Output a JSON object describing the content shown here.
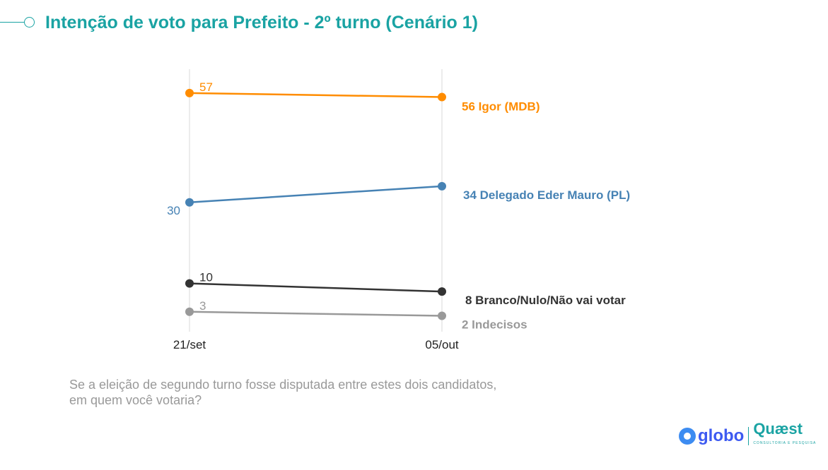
{
  "header": {
    "title": "Intenção de voto para Prefeito - 2º turno (Cenário 1)"
  },
  "question": "Se a eleição de segundo turno fosse disputada entre estes dois candidatos, em quem você votaria?",
  "logos": {
    "globo": "globo",
    "quaest": "Quæst",
    "quaest_sub": "CONSULTORIA E PESQUISA"
  },
  "chart_data": {
    "type": "line",
    "title": "Intenção de voto para Prefeito - 2º turno (Cenário 1)",
    "categories": [
      "21/set",
      "05/out"
    ],
    "ylim": [
      0,
      60
    ],
    "series": [
      {
        "name": "Igor (MDB)",
        "values": [
          57,
          56
        ],
        "color": "#ff8c00",
        "end_label": "56 Igor (MDB)"
      },
      {
        "name": "Delegado Eder Mauro (PL)",
        "values": [
          30,
          34
        ],
        "color": "#4682b4",
        "end_label": "34 Delegado Eder Mauro (PL)"
      },
      {
        "name": "Branco/Nulo/Não vai votar",
        "values": [
          10,
          8
        ],
        "color": "#333333",
        "end_label": "8 Branco/Nulo/Não vai votar"
      },
      {
        "name": "Indecisos",
        "values": [
          3,
          2
        ],
        "color": "#999999",
        "end_label": "2 Indecisos"
      }
    ]
  }
}
